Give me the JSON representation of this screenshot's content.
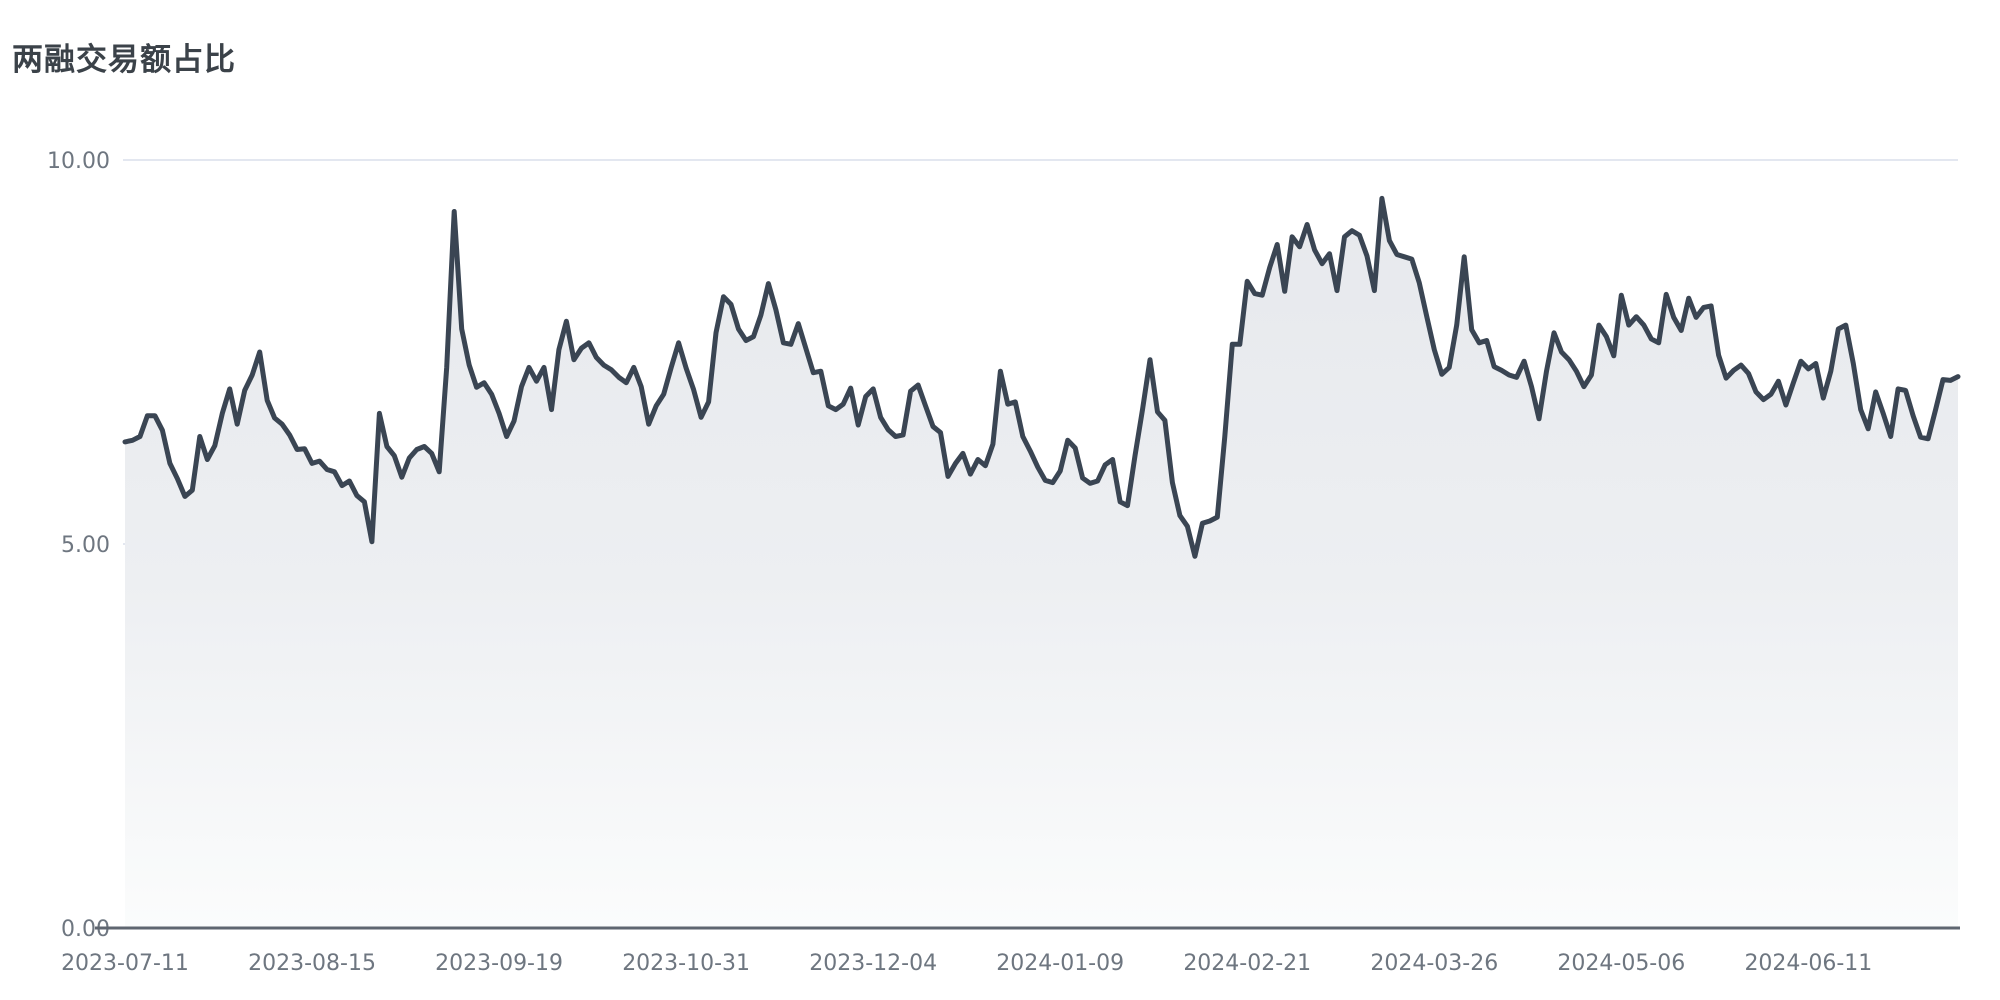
{
  "page": {
    "title": "两融交易额占比"
  },
  "chart_data": {
    "type": "area",
    "title": "两融交易额占比",
    "xlabel": "",
    "ylabel": "",
    "ylim": [
      0,
      10
    ],
    "y_tick_values": [
      0,
      5,
      10
    ],
    "y_tick_labels": [
      "0.00",
      "5.00",
      "10.00"
    ],
    "x_tick_labels": [
      "2023-07-11",
      "2023-08-15",
      "2023-09-19",
      "2023-10-31",
      "2023-12-04",
      "2024-01-09",
      "2024-02-21",
      "2024-03-26",
      "2024-05-06",
      "2024-06-11"
    ],
    "x_tick_every": 25,
    "grid": true,
    "legend_position": "none",
    "series": [
      {
        "name": "两融交易额占比",
        "values": [
          6.33,
          6.35,
          6.4,
          6.67,
          6.67,
          6.48,
          6.05,
          5.85,
          5.62,
          5.7,
          6.4,
          6.1,
          6.28,
          6.7,
          7.02,
          6.56,
          7.0,
          7.2,
          7.5,
          6.87,
          6.64,
          6.56,
          6.42,
          6.23,
          6.24,
          6.05,
          6.08,
          5.97,
          5.94,
          5.76,
          5.82,
          5.63,
          5.55,
          5.03,
          6.7,
          6.27,
          6.15,
          5.87,
          6.12,
          6.23,
          6.27,
          6.18,
          5.94,
          7.3,
          9.33,
          7.8,
          7.33,
          7.04,
          7.1,
          6.95,
          6.7,
          6.4,
          6.6,
          7.05,
          7.3,
          7.12,
          7.3,
          6.75,
          7.53,
          7.9,
          7.4,
          7.55,
          7.62,
          7.43,
          7.33,
          7.27,
          7.17,
          7.1,
          7.3,
          7.05,
          6.56,
          6.8,
          6.95,
          7.3,
          7.62,
          7.29,
          7.01,
          6.65,
          6.85,
          7.75,
          8.22,
          8.12,
          7.8,
          7.65,
          7.7,
          7.98,
          8.39,
          8.05,
          7.62,
          7.6,
          7.87,
          7.55,
          7.23,
          7.25,
          6.8,
          6.75,
          6.82,
          7.03,
          6.55,
          6.92,
          7.02,
          6.65,
          6.49,
          6.4,
          6.42,
          6.99,
          7.07,
          6.8,
          6.53,
          6.45,
          5.88,
          6.05,
          6.18,
          5.91,
          6.1,
          6.02,
          6.3,
          7.25,
          6.82,
          6.85,
          6.4,
          6.21,
          6.0,
          5.83,
          5.8,
          5.95,
          6.35,
          6.25,
          5.86,
          5.79,
          5.82,
          6.03,
          6.1,
          5.55,
          5.5,
          6.15,
          6.75,
          7.4,
          6.72,
          6.61,
          5.8,
          5.37,
          5.23,
          4.84,
          5.27,
          5.3,
          5.35,
          6.4,
          7.6,
          7.6,
          8.42,
          8.26,
          8.24,
          8.6,
          8.9,
          8.29,
          9.0,
          8.87,
          9.16,
          8.83,
          8.65,
          8.78,
          8.3,
          9.0,
          9.08,
          9.02,
          8.75,
          8.3,
          9.5,
          8.95,
          8.77,
          8.74,
          8.71,
          8.4,
          7.96,
          7.53,
          7.21,
          7.3,
          7.85,
          8.74,
          7.79,
          7.62,
          7.65,
          7.31,
          7.26,
          7.2,
          7.17,
          7.38,
          7.05,
          6.63,
          7.25,
          7.75,
          7.5,
          7.4,
          7.25,
          7.05,
          7.2,
          7.85,
          7.7,
          7.45,
          8.24,
          7.85,
          7.96,
          7.85,
          7.67,
          7.62,
          8.25,
          7.95,
          7.78,
          8.2,
          7.95,
          8.08,
          8.1,
          7.46,
          7.16,
          7.26,
          7.33,
          7.22,
          6.98,
          6.88,
          6.95,
          7.12,
          6.81,
          7.1,
          7.38,
          7.28,
          7.35,
          6.9,
          7.25,
          7.8,
          7.85,
          7.35,
          6.75,
          6.5,
          6.98,
          6.7,
          6.4,
          7.02,
          7.0,
          6.67,
          6.39,
          6.37,
          6.75,
          7.14,
          7.13,
          7.18
        ]
      }
    ],
    "colors": {
      "line": "#3A4553",
      "area_top": "#E6E8EC",
      "area_mid": "#EDEFF2",
      "area_bottom": "#FBFCFC",
      "grid_line": "#E3E7F0",
      "axis_line": "#5F6670",
      "tick_text": "#6E7680",
      "title_text": "#3B4249"
    }
  }
}
